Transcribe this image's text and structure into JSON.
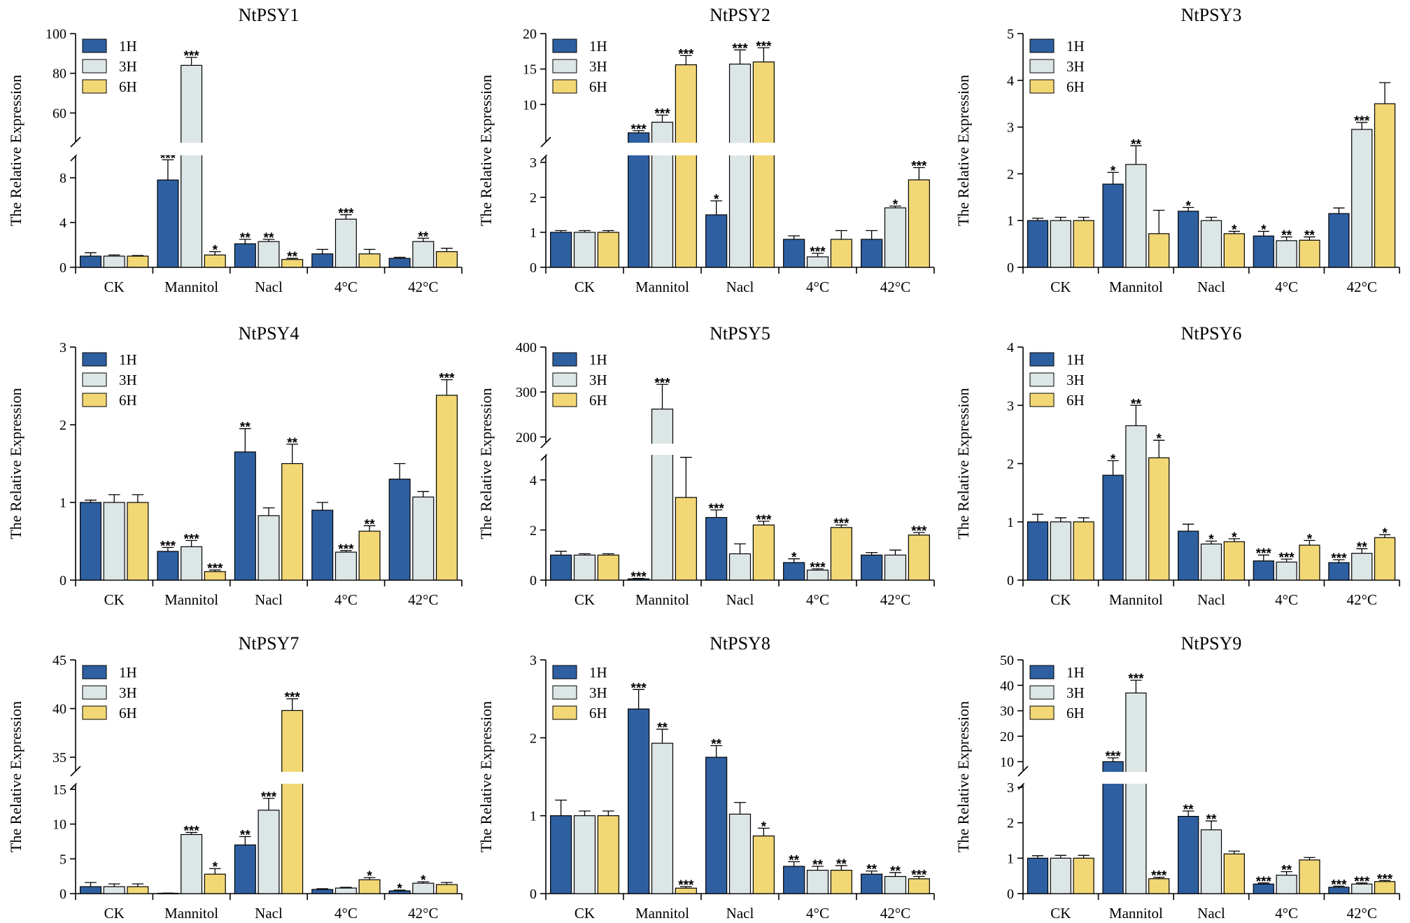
{
  "figure": {
    "series_names": [
      "1H",
      "3H",
      "6H"
    ],
    "series_colors": [
      "#2e5fa1",
      "#dde6e6",
      "#f2d775"
    ],
    "ylabel": "The Relative Expression",
    "categories": [
      "CK",
      "Mannitol",
      "Nacl",
      "4°C",
      "42°C"
    ]
  },
  "chart_data": [
    {
      "type": "bar",
      "title": "NtPSY1",
      "ylabel": "The Relative Expression",
      "categories": [
        "CK",
        "Mannitol",
        "Nacl",
        "4°C",
        "42°C"
      ],
      "axis_break": true,
      "lower_range": [
        0,
        10
      ],
      "lower_ticks": [
        0,
        4,
        8
      ],
      "upper_range": [
        45,
        100
      ],
      "upper_ticks": [
        60,
        80,
        100
      ],
      "series": [
        {
          "name": "1H",
          "values": [
            1.0,
            7.8,
            2.1,
            1.2,
            0.8
          ],
          "errors": [
            0.3,
            1.8,
            0.4,
            0.4,
            0.1
          ],
          "sig": [
            "",
            "***",
            "**",
            "",
            ""
          ]
        },
        {
          "name": "3H",
          "values": [
            1.0,
            84.0,
            2.3,
            4.3,
            2.3
          ],
          "errors": [
            0.1,
            4.0,
            0.2,
            0.4,
            0.3
          ],
          "sig": [
            "",
            "***",
            "**",
            "***",
            "**"
          ]
        },
        {
          "name": "6H",
          "values": [
            1.0,
            1.1,
            0.7,
            1.2,
            1.4
          ],
          "errors": [
            0.05,
            0.3,
            0.1,
            0.4,
            0.3
          ],
          "sig": [
            "",
            "*",
            "**",
            "",
            ""
          ]
        }
      ]
    },
    {
      "type": "bar",
      "title": "NtPSY2",
      "ylabel": "The Relative Expression",
      "categories": [
        "CK",
        "Mannitol",
        "Nacl",
        "4°C",
        "42°C"
      ],
      "axis_break": true,
      "lower_range": [
        0,
        3.2
      ],
      "lower_ticks": [
        0,
        1,
        2,
        3
      ],
      "upper_range": [
        4.6,
        20
      ],
      "upper_ticks": [
        10,
        15,
        20
      ],
      "series": [
        {
          "name": "1H",
          "values": [
            1.0,
            6.0,
            1.5,
            0.8,
            0.8
          ],
          "errors": [
            0.05,
            0.3,
            0.4,
            0.1,
            0.25
          ],
          "sig": [
            "",
            "***",
            "*",
            "",
            ""
          ]
        },
        {
          "name": "3H",
          "values": [
            1.0,
            7.5,
            15.7,
            0.3,
            1.7
          ],
          "errors": [
            0.05,
            1.0,
            2.0,
            0.1,
            0.05
          ],
          "sig": [
            "",
            "***",
            "***",
            "***",
            "*"
          ]
        },
        {
          "name": "6H",
          "values": [
            1.0,
            15.6,
            16.0,
            0.8,
            2.5
          ],
          "errors": [
            0.05,
            1.3,
            2.0,
            0.25,
            0.35
          ],
          "sig": [
            "",
            "***",
            "***",
            "",
            "***"
          ]
        }
      ]
    },
    {
      "type": "bar",
      "title": "NtPSY3",
      "ylabel": "The Relative Expression",
      "categories": [
        "CK",
        "Mannitol",
        "Nacl",
        "4°C",
        "42°C"
      ],
      "axis_break": false,
      "range": [
        0,
        5
      ],
      "ticks": [
        0,
        1,
        2,
        3,
        4,
        5
      ],
      "series": [
        {
          "name": "1H",
          "values": [
            1.0,
            1.78,
            1.2,
            0.67,
            1.15
          ],
          "errors": [
            0.05,
            0.25,
            0.08,
            0.1,
            0.12
          ],
          "sig": [
            "",
            "*",
            "*",
            "*",
            ""
          ]
        },
        {
          "name": "3H",
          "values": [
            1.0,
            2.2,
            1.0,
            0.57,
            2.95
          ],
          "errors": [
            0.07,
            0.4,
            0.07,
            0.08,
            0.15
          ],
          "sig": [
            "",
            "**",
            "",
            "**",
            "***"
          ]
        },
        {
          "name": "6H",
          "values": [
            1.0,
            0.72,
            0.72,
            0.58,
            3.5
          ],
          "errors": [
            0.07,
            0.5,
            0.05,
            0.07,
            0.45
          ],
          "sig": [
            "",
            "",
            "*",
            "**",
            ""
          ]
        }
      ]
    },
    {
      "type": "bar",
      "title": "NtPSY4",
      "ylabel": "The Relative Expression",
      "categories": [
        "CK",
        "Mannitol",
        "Nacl",
        "4°C",
        "42°C"
      ],
      "axis_break": false,
      "range": [
        0,
        3
      ],
      "ticks": [
        0,
        1,
        2,
        3
      ],
      "series": [
        {
          "name": "1H",
          "values": [
            1.0,
            0.37,
            1.65,
            0.9,
            1.3
          ],
          "errors": [
            0.03,
            0.05,
            0.3,
            0.1,
            0.2
          ],
          "sig": [
            "",
            "***",
            "**",
            "",
            ""
          ]
        },
        {
          "name": "3H",
          "values": [
            1.0,
            0.43,
            0.83,
            0.36,
            1.07
          ],
          "errors": [
            0.1,
            0.08,
            0.1,
            0.02,
            0.07
          ],
          "sig": [
            "",
            "***",
            "",
            "***",
            ""
          ]
        },
        {
          "name": "6H",
          "values": [
            1.0,
            0.11,
            1.5,
            0.63,
            2.38
          ],
          "errors": [
            0.1,
            0.02,
            0.25,
            0.07,
            0.2
          ],
          "sig": [
            "",
            "***",
            "**",
            "**",
            "***"
          ]
        }
      ]
    },
    {
      "type": "bar",
      "title": "NtPSY5",
      "ylabel": "The Relative Expression",
      "categories": [
        "CK",
        "Mannitol",
        "Nacl",
        "4°C",
        "42°C"
      ],
      "axis_break": true,
      "lower_range": [
        0,
        5
      ],
      "lower_ticks": [
        0,
        2,
        4
      ],
      "upper_range": [
        185,
        400
      ],
      "upper_ticks": [
        200,
        300,
        400
      ],
      "series": [
        {
          "name": "1H",
          "values": [
            1.0,
            0.05,
            2.5,
            0.7,
            1.0
          ],
          "errors": [
            0.15,
            0.02,
            0.3,
            0.15,
            0.1
          ],
          "sig": [
            "",
            "***",
            "***",
            "*",
            ""
          ]
        },
        {
          "name": "3H",
          "values": [
            1.0,
            262,
            1.05,
            0.4,
            1.0
          ],
          "errors": [
            0.05,
            55,
            0.4,
            0.05,
            0.2
          ],
          "sig": [
            "",
            "***",
            "",
            "***",
            ""
          ]
        },
        {
          "name": "6H",
          "values": [
            1.0,
            3.3,
            2.2,
            2.1,
            1.8
          ],
          "errors": [
            0.05,
            1.6,
            0.15,
            0.1,
            0.1
          ],
          "sig": [
            "",
            "",
            "***",
            "***",
            "***"
          ]
        }
      ]
    },
    {
      "type": "bar",
      "title": "NtPSY6",
      "ylabel": "The Relative Expression",
      "categories": [
        "CK",
        "Mannitol",
        "Nacl",
        "4°C",
        "42°C"
      ],
      "axis_break": false,
      "range": [
        0,
        4
      ],
      "ticks": [
        0,
        1,
        2,
        3,
        4
      ],
      "series": [
        {
          "name": "1H",
          "values": [
            1.0,
            1.8,
            0.84,
            0.33,
            0.3
          ],
          "errors": [
            0.13,
            0.25,
            0.12,
            0.1,
            0.05
          ],
          "sig": [
            "",
            "*",
            "",
            "***",
            "***"
          ]
        },
        {
          "name": "3H",
          "values": [
            1.0,
            2.65,
            0.62,
            0.31,
            0.46
          ],
          "errors": [
            0.07,
            0.35,
            0.05,
            0.05,
            0.08
          ],
          "sig": [
            "",
            "**",
            "*",
            "***",
            "**"
          ]
        },
        {
          "name": "6H",
          "values": [
            1.0,
            2.1,
            0.66,
            0.6,
            0.73
          ],
          "errors": [
            0.07,
            0.3,
            0.05,
            0.08,
            0.05
          ],
          "sig": [
            "",
            "*",
            "*",
            "*",
            "*"
          ]
        }
      ]
    },
    {
      "type": "bar",
      "title": "NtPSY7",
      "ylabel": "The Relative Expression",
      "categories": [
        "CK",
        "Mannitol",
        "Nacl",
        "4°C",
        "42°C"
      ],
      "axis_break": true,
      "lower_range": [
        0,
        15.8
      ],
      "lower_ticks": [
        0,
        5,
        10,
        15
      ],
      "upper_range": [
        33.5,
        45
      ],
      "upper_ticks": [
        35,
        40,
        45
      ],
      "series": [
        {
          "name": "1H",
          "values": [
            1.0,
            0.05,
            7.0,
            0.6,
            0.4
          ],
          "errors": [
            0.6,
            0.02,
            1.2,
            0.1,
            0.1
          ],
          "sig": [
            "",
            "",
            "**",
            "",
            "*"
          ]
        },
        {
          "name": "3H",
          "values": [
            1.0,
            8.5,
            12.0,
            0.8,
            1.5
          ],
          "errors": [
            0.4,
            0.3,
            1.7,
            0.1,
            0.2
          ],
          "sig": [
            "",
            "***",
            "***",
            "",
            "*"
          ]
        },
        {
          "name": "6H",
          "values": [
            1.0,
            2.8,
            39.8,
            2.0,
            1.3
          ],
          "errors": [
            0.4,
            0.8,
            1.2,
            0.3,
            0.3
          ],
          "sig": [
            "",
            "*",
            "***",
            "*",
            ""
          ]
        }
      ]
    },
    {
      "type": "bar",
      "title": "NtPSY8",
      "ylabel": "The Relative Expression",
      "categories": [
        "CK",
        "Mannitol",
        "Nacl",
        "4°C",
        "42°C"
      ],
      "axis_break": false,
      "range": [
        0,
        3
      ],
      "ticks": [
        0,
        1,
        2,
        3
      ],
      "series": [
        {
          "name": "1H",
          "values": [
            1.0,
            2.37,
            1.75,
            0.35,
            0.25
          ],
          "errors": [
            0.2,
            0.25,
            0.15,
            0.06,
            0.04
          ],
          "sig": [
            "",
            "***",
            "**",
            "**",
            "**"
          ]
        },
        {
          "name": "3H",
          "values": [
            1.0,
            1.93,
            1.02,
            0.3,
            0.22
          ],
          "errors": [
            0.06,
            0.18,
            0.15,
            0.05,
            0.05
          ],
          "sig": [
            "",
            "**",
            "",
            "**",
            "**"
          ]
        },
        {
          "name": "6H",
          "values": [
            1.0,
            0.07,
            0.74,
            0.3,
            0.19
          ],
          "errors": [
            0.06,
            0.02,
            0.1,
            0.06,
            0.03
          ],
          "sig": [
            "",
            "***",
            "*",
            "**",
            "***"
          ]
        }
      ]
    },
    {
      "type": "bar",
      "title": "NtPSY9",
      "ylabel": "The Relative Expression",
      "categories": [
        "CK",
        "Mannitol",
        "Nacl",
        "4°C",
        "42°C"
      ],
      "axis_break": true,
      "lower_range": [
        0,
        3.1
      ],
      "lower_ticks": [
        0,
        1,
        2,
        3
      ],
      "upper_range": [
        6,
        50
      ],
      "upper_ticks": [
        10,
        20,
        30,
        40,
        50
      ],
      "series": [
        {
          "name": "1H",
          "values": [
            1.0,
            10.0,
            2.18,
            0.27,
            0.18
          ],
          "errors": [
            0.07,
            1.5,
            0.15,
            0.03,
            0.03
          ],
          "sig": [
            "",
            "***",
            "**",
            "***",
            "***"
          ]
        },
        {
          "name": "3H",
          "values": [
            1.0,
            37.0,
            1.8,
            0.52,
            0.27
          ],
          "errors": [
            0.08,
            5.0,
            0.25,
            0.1,
            0.03
          ],
          "sig": [
            "",
            "***",
            "**",
            "**",
            "***"
          ]
        },
        {
          "name": "6H",
          "values": [
            1.0,
            0.42,
            1.12,
            0.95,
            0.34
          ],
          "errors": [
            0.08,
            0.04,
            0.08,
            0.07,
            0.03
          ],
          "sig": [
            "",
            "***",
            "",
            "",
            "***"
          ]
        }
      ]
    }
  ]
}
